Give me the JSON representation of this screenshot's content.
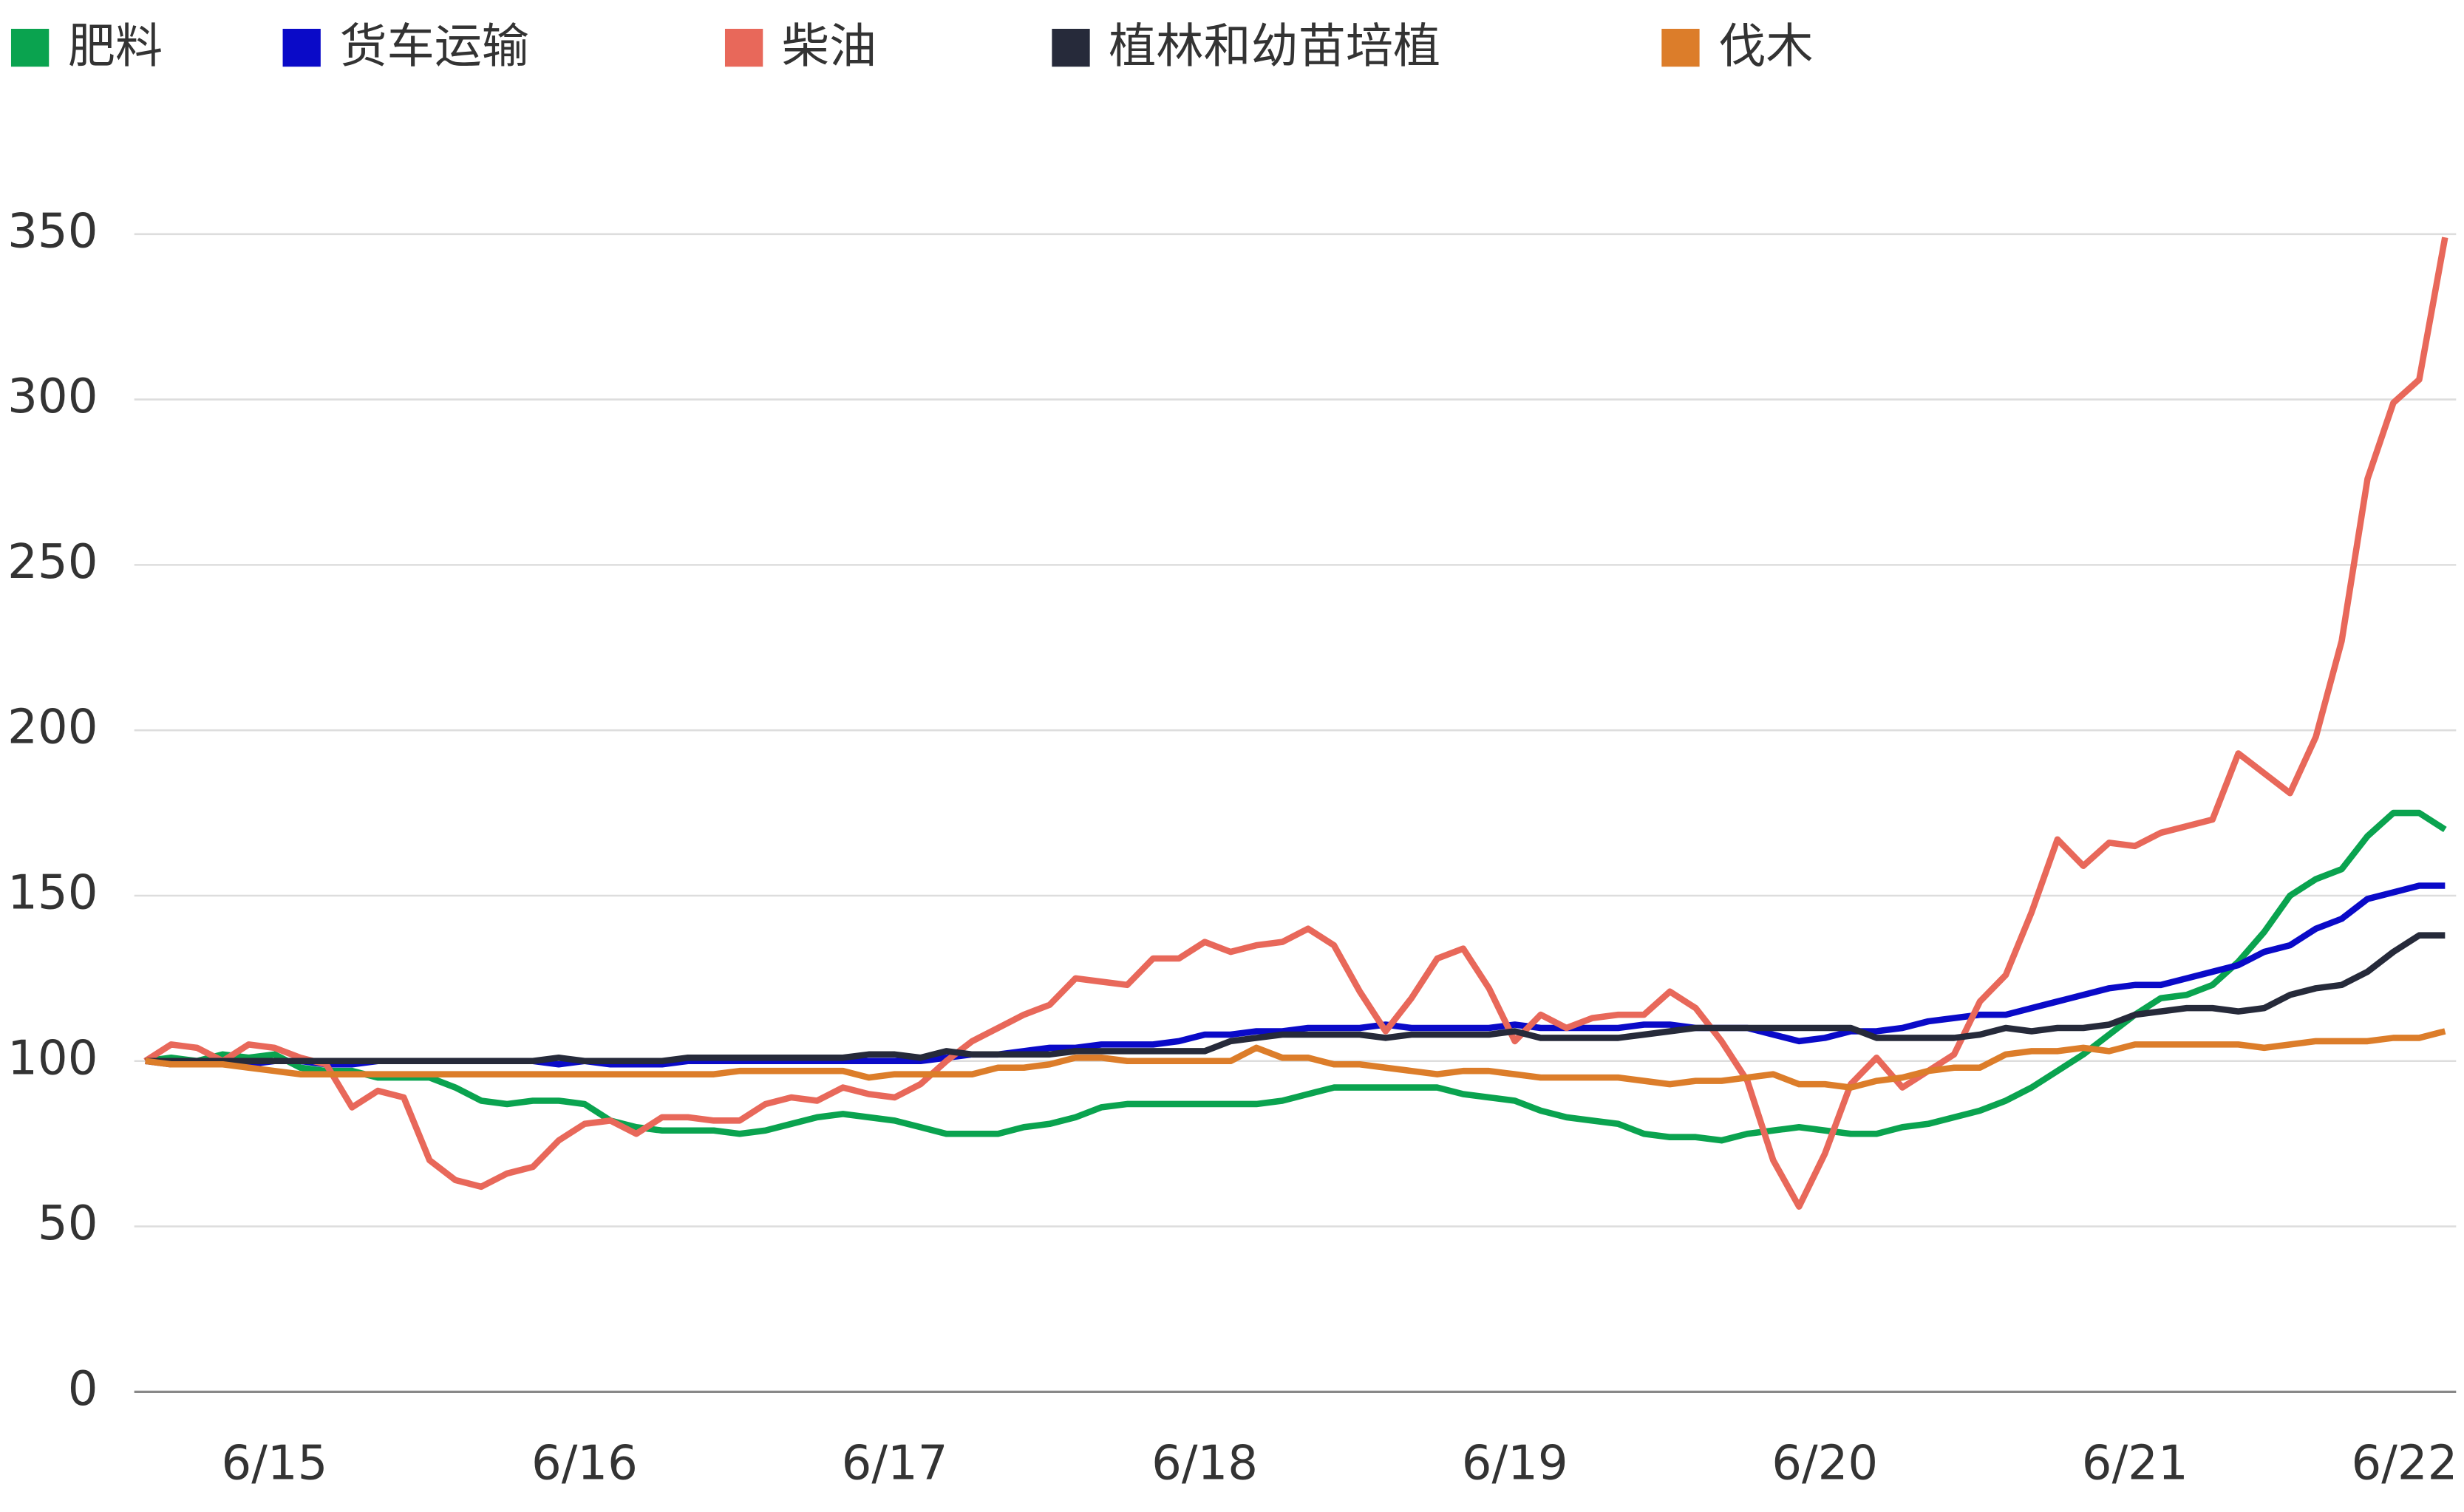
{
  "chart_data": {
    "type": "line",
    "categories": [
      null,
      null,
      null,
      null,
      null,
      "6/15",
      null,
      null,
      null,
      null,
      null,
      null,
      null,
      null,
      null,
      null,
      null,
      "6/16",
      null,
      null,
      null,
      null,
      null,
      null,
      null,
      null,
      null,
      null,
      null,
      "6/17",
      null,
      null,
      null,
      null,
      null,
      null,
      null,
      null,
      null,
      null,
      null,
      "6/18",
      null,
      null,
      null,
      null,
      null,
      null,
      null,
      null,
      null,
      null,
      null,
      "6/19",
      null,
      null,
      null,
      null,
      null,
      null,
      null,
      null,
      null,
      null,
      null,
      "6/20",
      null,
      null,
      null,
      null,
      null,
      null,
      null,
      null,
      null,
      null,
      null,
      "6/21",
      null,
      null,
      null,
      null,
      null,
      null,
      null,
      null,
      null,
      null,
      null,
      "6/22"
    ],
    "series": [
      {
        "name": "肥料",
        "color": "#0aa34f",
        "values": [
          100,
          101,
          100,
          102,
          101,
          102,
          98,
          97,
          97,
          95,
          95,
          95,
          92,
          88,
          87,
          88,
          88,
          87,
          82,
          80,
          79,
          79,
          79,
          78,
          79,
          81,
          83,
          84,
          83,
          82,
          80,
          78,
          78,
          78,
          80,
          81,
          83,
          86,
          87,
          87,
          87,
          87,
          87,
          87,
          88,
          90,
          92,
          92,
          92,
          92,
          92,
          90,
          89,
          88,
          85,
          83,
          82,
          81,
          78,
          77,
          77,
          76,
          78,
          79,
          80,
          79,
          78,
          78,
          80,
          81,
          83,
          85,
          88,
          92,
          97,
          102,
          108,
          114,
          119,
          120,
          123,
          130,
          139,
          150,
          155,
          158,
          168,
          175,
          175,
          170
        ]
      },
      {
        "name": "货车运输",
        "color": "#0a0ac8",
        "values": [
          100,
          99,
          100,
          99,
          99,
          100,
          100,
          99,
          99,
          100,
          100,
          100,
          100,
          100,
          100,
          100,
          99,
          100,
          99,
          99,
          99,
          100,
          100,
          100,
          100,
          100,
          100,
          100,
          100,
          100,
          100,
          101,
          102,
          102,
          103,
          104,
          104,
          105,
          105,
          105,
          106,
          108,
          108,
          109,
          109,
          110,
          110,
          110,
          111,
          110,
          110,
          110,
          110,
          111,
          110,
          110,
          110,
          110,
          111,
          111,
          110,
          110,
          110,
          108,
          106,
          107,
          109,
          109,
          110,
          112,
          113,
          114,
          114,
          116,
          118,
          120,
          122,
          123,
          123,
          125,
          127,
          129,
          133,
          135,
          140,
          143,
          149,
          151,
          153,
          153
        ]
      },
      {
        "name": "柴油",
        "color": "#e8685a",
        "values": [
          100,
          105,
          104,
          100,
          105,
          104,
          101,
          99,
          86,
          91,
          89,
          70,
          64,
          62,
          66,
          68,
          76,
          81,
          82,
          78,
          83,
          83,
          82,
          82,
          87,
          89,
          88,
          92,
          90,
          89,
          93,
          100,
          106,
          110,
          114,
          117,
          125,
          124,
          123,
          131,
          131,
          136,
          133,
          135,
          136,
          140,
          135,
          121,
          109,
          119,
          131,
          134,
          122,
          106,
          114,
          110,
          113,
          114,
          114,
          121,
          116,
          106,
          94,
          70,
          56,
          72,
          93,
          101,
          92,
          97,
          102,
          118,
          126,
          145,
          167,
          159,
          166,
          165,
          169,
          171,
          173,
          193,
          187,
          181,
          198,
          227,
          276,
          299,
          306,
          349
        ]
      },
      {
        "name": "植林和幼苗培植",
        "color": "#262a3a",
        "values": [
          100,
          100,
          100,
          100,
          100,
          100,
          100,
          100,
          100,
          100,
          100,
          100,
          100,
          100,
          100,
          100,
          101,
          100,
          100,
          100,
          100,
          101,
          101,
          101,
          101,
          101,
          101,
          101,
          102,
          102,
          101,
          103,
          102,
          102,
          102,
          102,
          103,
          103,
          103,
          103,
          103,
          103,
          106,
          107,
          108,
          108,
          108,
          108,
          107,
          108,
          108,
          108,
          108,
          109,
          107,
          107,
          107,
          107,
          108,
          109,
          110,
          110,
          110,
          110,
          110,
          110,
          110,
          107,
          107,
          107,
          107,
          108,
          110,
          109,
          110,
          110,
          111,
          114,
          115,
          116,
          116,
          115,
          116,
          120,
          122,
          123,
          127,
          133,
          138,
          138
        ]
      },
      {
        "name": "伐木",
        "color": "#dc7d2a",
        "values": [
          100,
          99,
          99,
          99,
          98,
          97,
          96,
          96,
          96,
          96,
          96,
          96,
          96,
          96,
          96,
          96,
          96,
          96,
          96,
          96,
          96,
          96,
          96,
          97,
          97,
          97,
          97,
          97,
          95,
          96,
          96,
          96,
          96,
          98,
          98,
          99,
          101,
          101,
          100,
          100,
          100,
          100,
          100,
          104,
          101,
          101,
          99,
          99,
          98,
          97,
          96,
          97,
          97,
          96,
          95,
          95,
          95,
          95,
          94,
          93,
          94,
          94,
          95,
          96,
          93,
          93,
          92,
          94,
          95,
          97,
          98,
          98,
          102,
          103,
          103,
          104,
          103,
          105,
          105,
          105,
          105,
          105,
          104,
          105,
          106,
          106,
          106,
          107,
          107,
          109
        ]
      }
    ],
    "ylim": [
      0,
      350
    ],
    "yticks": [
      0,
      50,
      100,
      150,
      200,
      250,
      300,
      350
    ],
    "grid": true,
    "legend": "top"
  }
}
